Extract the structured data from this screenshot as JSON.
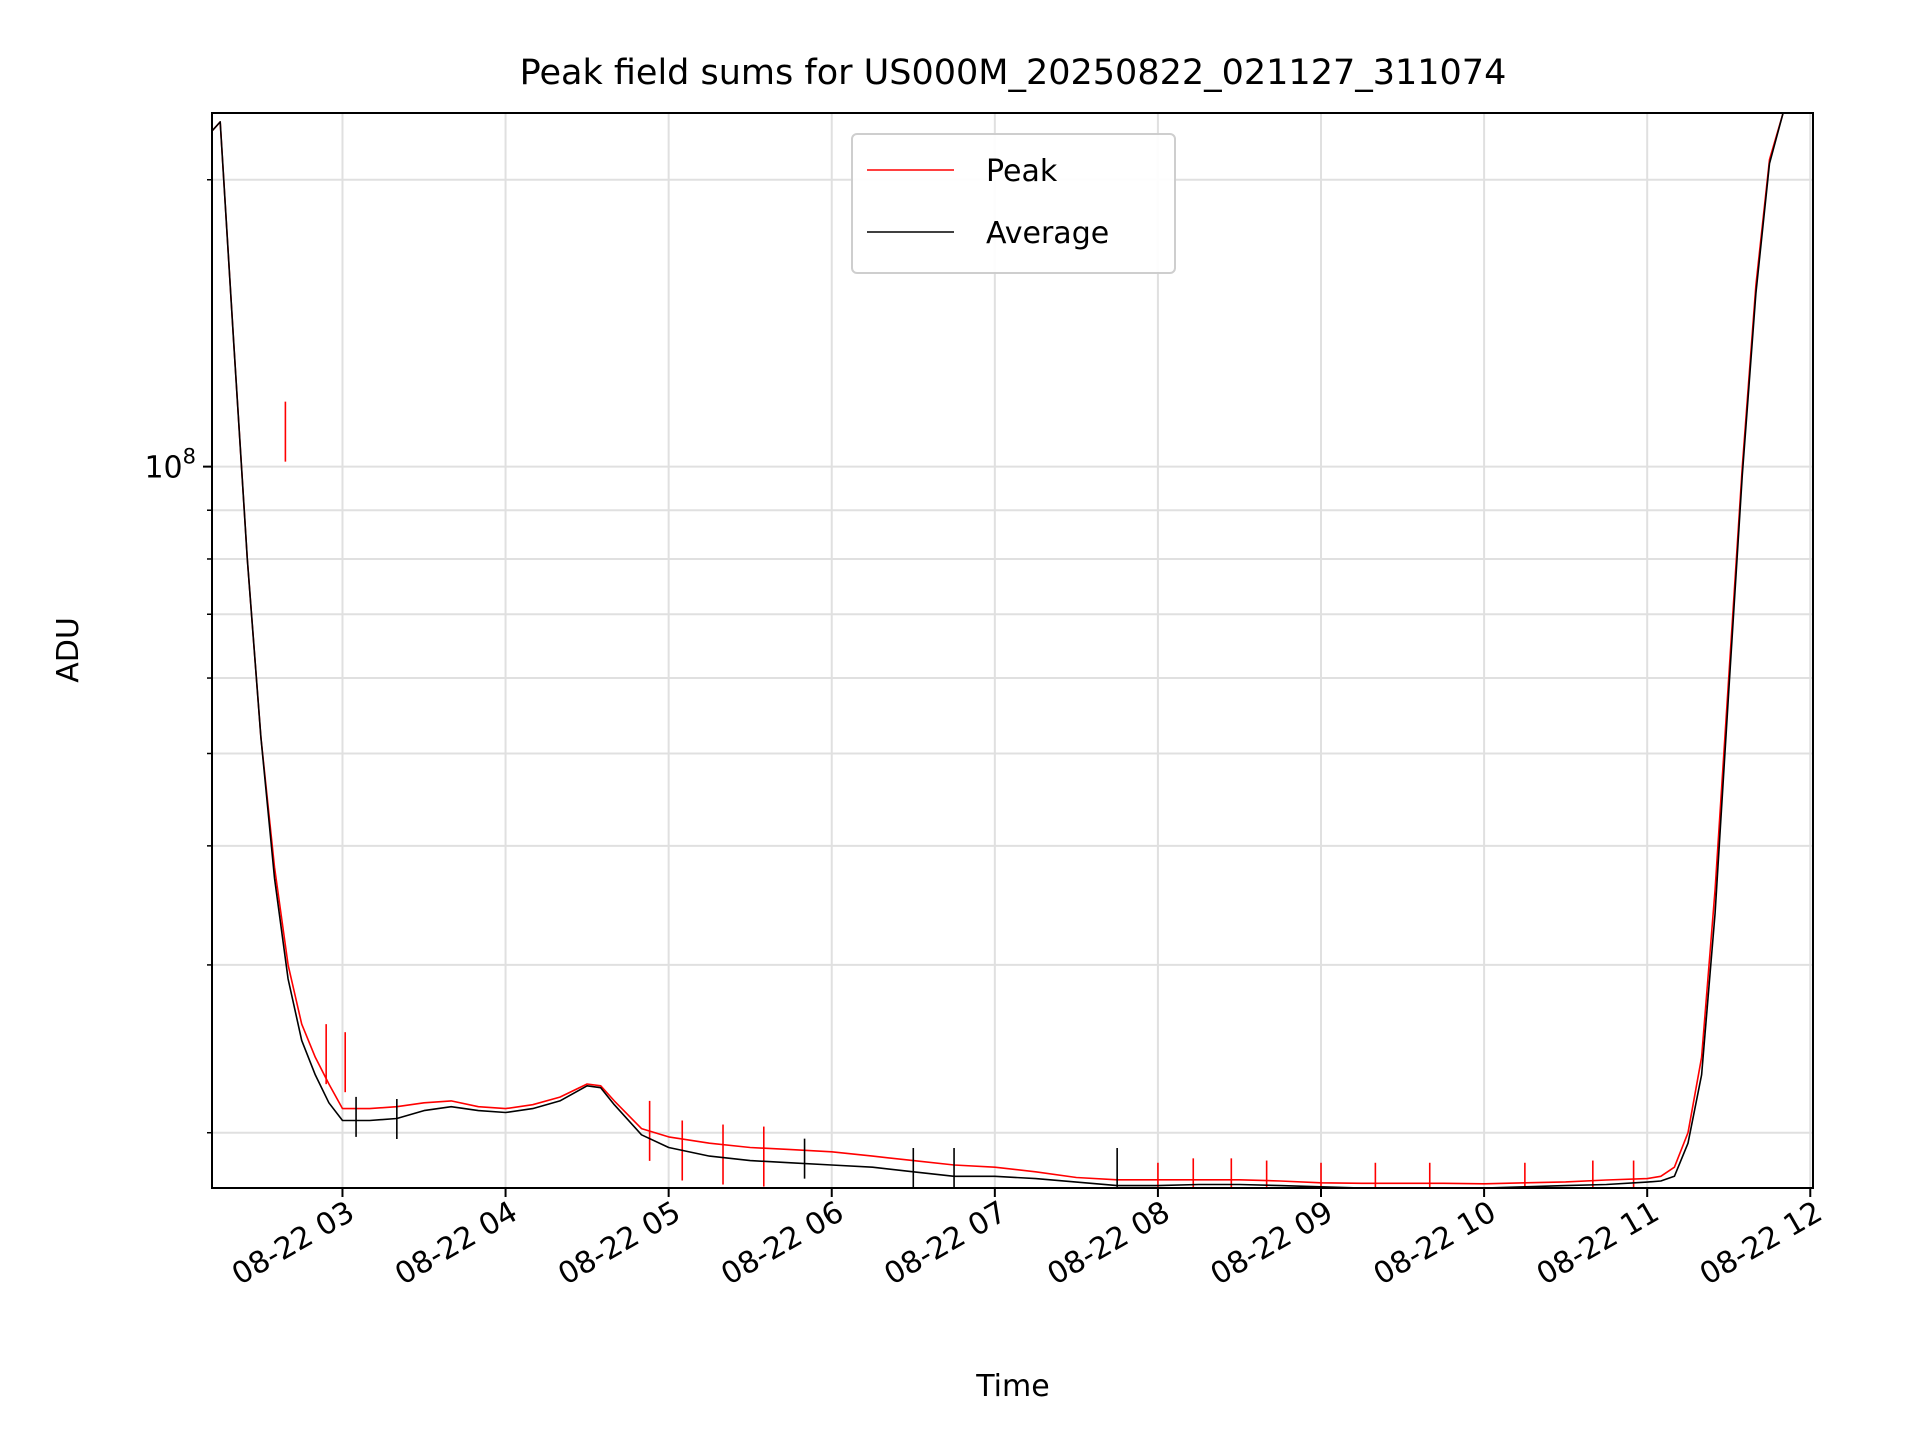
{
  "chart_data": {
    "type": "line",
    "title": "Peak field sums for US000M_20250822_021127_311074",
    "xlabel": "Time",
    "ylabel": "ADU",
    "yscale": "log",
    "ylim": [
      17500000,
      235000000
    ],
    "xlim": [
      "08-22 02:12",
      "08-22 12:01"
    ],
    "grid": true,
    "legend_position": "upper center",
    "x_ticks": [
      {
        "value": "08-22 03:00",
        "label": "08-22 03"
      },
      {
        "value": "08-22 04:00",
        "label": "08-22 04"
      },
      {
        "value": "08-22 05:00",
        "label": "08-22 05"
      },
      {
        "value": "08-22 06:00",
        "label": "08-22 06"
      },
      {
        "value": "08-22 07:00",
        "label": "08-22 07"
      },
      {
        "value": "08-22 08:00",
        "label": "08-22 08"
      },
      {
        "value": "08-22 09:00",
        "label": "08-22 09"
      },
      {
        "value": "08-22 10:00",
        "label": "08-22 10"
      },
      {
        "value": "08-22 11:00",
        "label": "08-22 11"
      },
      {
        "value": "08-22 12:00",
        "label": "08-22 12"
      }
    ],
    "y_major_ticks": [
      {
        "value": 100000000,
        "base": "10",
        "exp": "8"
      }
    ],
    "y_minor_ticks": [
      20000000,
      30000000,
      40000000,
      50000000,
      60000000,
      70000000,
      80000000,
      90000000,
      200000000
    ],
    "series": [
      {
        "name": "Peak",
        "color": "#ff0000",
        "x": [
          "08-22 02:12",
          "08-22 02:15",
          "08-22 02:20",
          "08-22 02:25",
          "08-22 02:30",
          "08-22 02:35",
          "08-22 02:40",
          "08-22 02:45",
          "08-22 02:50",
          "08-22 02:55",
          "08-22 03:00",
          "08-22 03:10",
          "08-22 03:20",
          "08-22 03:30",
          "08-22 03:40",
          "08-22 03:50",
          "08-22 04:00",
          "08-22 04:10",
          "08-22 04:20",
          "08-22 04:30",
          "08-22 04:35",
          "08-22 04:40",
          "08-22 04:50",
          "08-22 05:00",
          "08-22 05:15",
          "08-22 05:30",
          "08-22 05:45",
          "08-22 06:00",
          "08-22 06:15",
          "08-22 06:30",
          "08-22 06:45",
          "08-22 07:00",
          "08-22 07:15",
          "08-22 07:30",
          "08-22 07:45",
          "08-22 08:00",
          "08-22 08:15",
          "08-22 08:30",
          "08-22 08:45",
          "08-22 09:00",
          "08-22 09:15",
          "08-22 09:30",
          "08-22 09:45",
          "08-22 10:00",
          "08-22 10:15",
          "08-22 10:30",
          "08-22 10:45",
          "08-22 11:00",
          "08-22 11:05",
          "08-22 11:10",
          "08-22 11:15",
          "08-22 11:20",
          "08-22 11:25",
          "08-22 11:30",
          "08-22 11:35",
          "08-22 11:40",
          "08-22 11:45",
          "08-22 11:50",
          "08-22 11:55"
        ],
        "y": [
          225000000,
          230000000,
          135000000,
          80000000,
          52000000,
          38000000,
          30000000,
          26000000,
          24000000,
          22500000,
          21200000,
          21200000,
          21300000,
          21500000,
          21600000,
          21300000,
          21200000,
          21400000,
          21800000,
          22500000,
          22400000,
          21600000,
          20200000,
          19800000,
          19500000,
          19300000,
          19200000,
          19100000,
          18900000,
          18700000,
          18500000,
          18400000,
          18200000,
          17950000,
          17850000,
          17850000,
          17850000,
          17850000,
          17800000,
          17720000,
          17700000,
          17700000,
          17700000,
          17680000,
          17720000,
          17760000,
          17840000,
          17900000,
          18000000,
          18400000,
          20000000,
          24000000,
          36000000,
          60000000,
          100000000,
          155000000,
          210000000,
          235000000,
          235000000
        ],
        "spikes": [
          {
            "x": "08-22 02:39",
            "y": 117000000
          },
          {
            "x": "08-22 02:54",
            "y": 26000000
          },
          {
            "x": "08-22 03:01",
            "y": 25500000
          },
          {
            "x": "08-22 04:53",
            "y": 21600000
          },
          {
            "x": "08-22 05:05",
            "y": 20600000
          },
          {
            "x": "08-22 05:20",
            "y": 20400000
          },
          {
            "x": "08-22 05:35",
            "y": 20300000
          },
          {
            "x": "08-22 08:00",
            "y": 18600000
          },
          {
            "x": "08-22 08:13",
            "y": 18800000
          },
          {
            "x": "08-22 08:27",
            "y": 18800000
          },
          {
            "x": "08-22 08:40",
            "y": 18700000
          },
          {
            "x": "08-22 09:00",
            "y": 18600000
          },
          {
            "x": "08-22 09:20",
            "y": 18600000
          },
          {
            "x": "08-22 09:40",
            "y": 18600000
          },
          {
            "x": "08-22 10:15",
            "y": 18600000
          },
          {
            "x": "08-22 10:40",
            "y": 18700000
          },
          {
            "x": "08-22 10:55",
            "y": 18700000
          }
        ]
      },
      {
        "name": "Average",
        "color": "#000000",
        "x": [
          "08-22 02:12",
          "08-22 02:15",
          "08-22 02:20",
          "08-22 02:25",
          "08-22 02:30",
          "08-22 02:35",
          "08-22 02:40",
          "08-22 02:45",
          "08-22 02:50",
          "08-22 02:55",
          "08-22 03:00",
          "08-22 03:10",
          "08-22 03:20",
          "08-22 03:30",
          "08-22 03:40",
          "08-22 03:50",
          "08-22 04:00",
          "08-22 04:10",
          "08-22 04:20",
          "08-22 04:30",
          "08-22 04:35",
          "08-22 04:40",
          "08-22 04:50",
          "08-22 05:00",
          "08-22 05:15",
          "08-22 05:30",
          "08-22 05:45",
          "08-22 06:00",
          "08-22 06:15",
          "08-22 06:30",
          "08-22 06:45",
          "08-22 07:00",
          "08-22 07:15",
          "08-22 07:30",
          "08-22 07:45",
          "08-22 08:00",
          "08-22 08:15",
          "08-22 08:30",
          "08-22 08:45",
          "08-22 09:00",
          "08-22 09:15",
          "08-22 09:30",
          "08-22 09:45",
          "08-22 10:00",
          "08-22 10:15",
          "08-22 10:30",
          "08-22 10:45",
          "08-22 11:00",
          "08-22 11:05",
          "08-22 11:10",
          "08-22 11:15",
          "08-22 11:20",
          "08-22 11:25",
          "08-22 11:30",
          "08-22 11:35",
          "08-22 11:40",
          "08-22 11:45",
          "08-22 11:50",
          "08-22 11:55"
        ],
        "y": [
          225000000,
          230000000,
          135000000,
          80000000,
          52000000,
          37000000,
          29000000,
          25000000,
          23000000,
          21500000,
          20600000,
          20600000,
          20700000,
          21100000,
          21300000,
          21100000,
          21000000,
          21200000,
          21600000,
          22400000,
          22300000,
          21400000,
          19900000,
          19300000,
          18900000,
          18700000,
          18600000,
          18500000,
          18400000,
          18200000,
          18000000,
          18000000,
          17900000,
          17750000,
          17600000,
          17600000,
          17650000,
          17650000,
          17600000,
          17550000,
          17500000,
          17500000,
          17500000,
          17500000,
          17550000,
          17600000,
          17650000,
          17750000,
          17800000,
          18000000,
          19500000,
          23000000,
          34000000,
          58000000,
          98000000,
          152000000,
          208000000,
          235000000,
          235000000
        ],
        "dips": [
          {
            "x": "08-22 03:05",
            "y": 19800000
          },
          {
            "x": "08-22 03:20",
            "y": 19700000
          },
          {
            "x": "08-22 05:50",
            "y": 17900000
          },
          {
            "x": "08-22 06:30",
            "y": 17500000
          },
          {
            "x": "08-22 06:45",
            "y": 17500000
          },
          {
            "x": "08-22 07:45",
            "y": 17500000
          }
        ]
      }
    ],
    "legend": [
      {
        "name": "Peak",
        "color": "#ff0000"
      },
      {
        "name": "Average",
        "color": "#000000"
      }
    ]
  }
}
